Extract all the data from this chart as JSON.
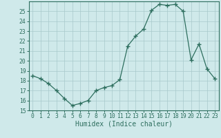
{
  "x": [
    0,
    1,
    2,
    3,
    4,
    5,
    6,
    7,
    8,
    9,
    10,
    11,
    12,
    13,
    14,
    15,
    16,
    17,
    18,
    19,
    20,
    21,
    22,
    23
  ],
  "y": [
    18.5,
    18.2,
    17.7,
    17.0,
    16.2,
    15.5,
    15.7,
    16.0,
    17.0,
    17.3,
    17.5,
    18.1,
    21.5,
    22.5,
    23.2,
    25.1,
    25.7,
    25.6,
    25.7,
    25.0,
    20.1,
    21.7,
    19.2,
    18.2
  ],
  "line_color": "#2d6e5e",
  "marker": "+",
  "marker_size": 4,
  "marker_lw": 1.0,
  "bg_color": "#cfe9ea",
  "grid_color": "#a8c8cb",
  "xlabel": "Humidex (Indice chaleur)",
  "xlim": [
    -0.5,
    23.5
  ],
  "ylim": [
    15,
    26
  ],
  "yticks": [
    15,
    16,
    17,
    18,
    19,
    20,
    21,
    22,
    23,
    24,
    25
  ],
  "xticks": [
    0,
    1,
    2,
    3,
    4,
    5,
    6,
    7,
    8,
    9,
    10,
    11,
    12,
    13,
    14,
    15,
    16,
    17,
    18,
    19,
    20,
    21,
    22,
    23
  ],
  "tick_label_fontsize": 5.8,
  "xlabel_fontsize": 7.0,
  "tick_color": "#2d6e5e",
  "spine_color": "#2d6e5e",
  "line_width": 0.9
}
